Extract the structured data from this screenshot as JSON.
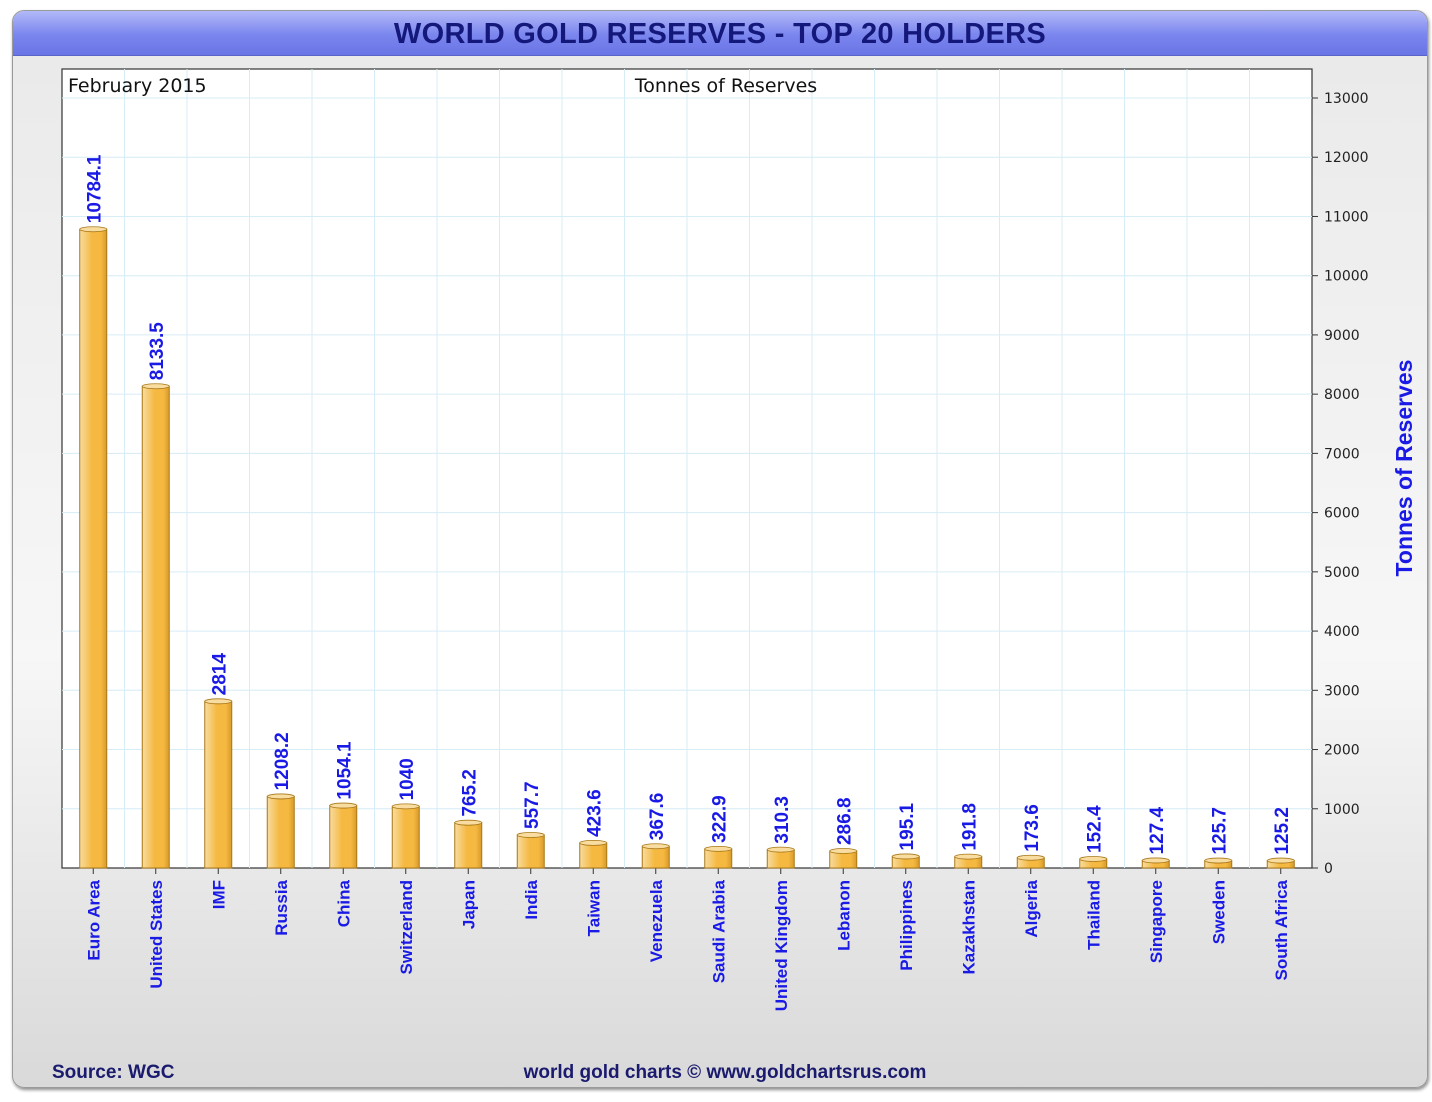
{
  "chart_data": {
    "type": "bar",
    "title": "WORLD GOLD RESERVES - TOP 20 HOLDERS",
    "subtitle": "Tonnes of Reserves",
    "date_label": "February 2015",
    "ylabel": "Tonnes of Reserves",
    "xlabel": "",
    "ylim": [
      0,
      13000
    ],
    "y_ticks": [
      0,
      1000,
      2000,
      3000,
      4000,
      5000,
      6000,
      7000,
      8000,
      9000,
      10000,
      11000,
      12000,
      13000
    ],
    "grid": true,
    "categories": [
      "Euro Area",
      "United States",
      "IMF",
      "Russia",
      "China",
      "Switzerland",
      "Japan",
      "India",
      "Taiwan",
      "Venezuela",
      "Saudi Arabia",
      "United Kingdom",
      "Lebanon",
      "Philippines",
      "Kazakhstan",
      "Algeria",
      "Thailand",
      "Singapore",
      "Sweden",
      "South Africa"
    ],
    "values": [
      10784.1,
      8133.5,
      2814,
      1208.2,
      1054.1,
      1040,
      765.2,
      557.7,
      423.6,
      367.6,
      322.9,
      310.3,
      286.8,
      195.1,
      191.8,
      173.6,
      152.4,
      127.4,
      125.7,
      125.2
    ],
    "value_labels": [
      "10784.1",
      "8133.5",
      "2814",
      "1208.2",
      "1054.1",
      "1040",
      "765.2",
      "557.7",
      "423.6",
      "367.6",
      "322.9",
      "310.3",
      "286.8",
      "195.1",
      "191.8",
      "173.6",
      "152.4",
      "127.4",
      "125.7",
      "125.2"
    ],
    "source": "Source: WGC",
    "credit": "world gold charts © www.goldchartsrus.com",
    "colors": {
      "bar_light": "#f8dca0",
      "bar_main": "#f5b942",
      "bar_dark": "#d89a2a",
      "bar_edge": "#a87818",
      "label_blue": "#1a1ae6",
      "title_navy": "#14187a",
      "grid": "#d6ecf6"
    }
  }
}
